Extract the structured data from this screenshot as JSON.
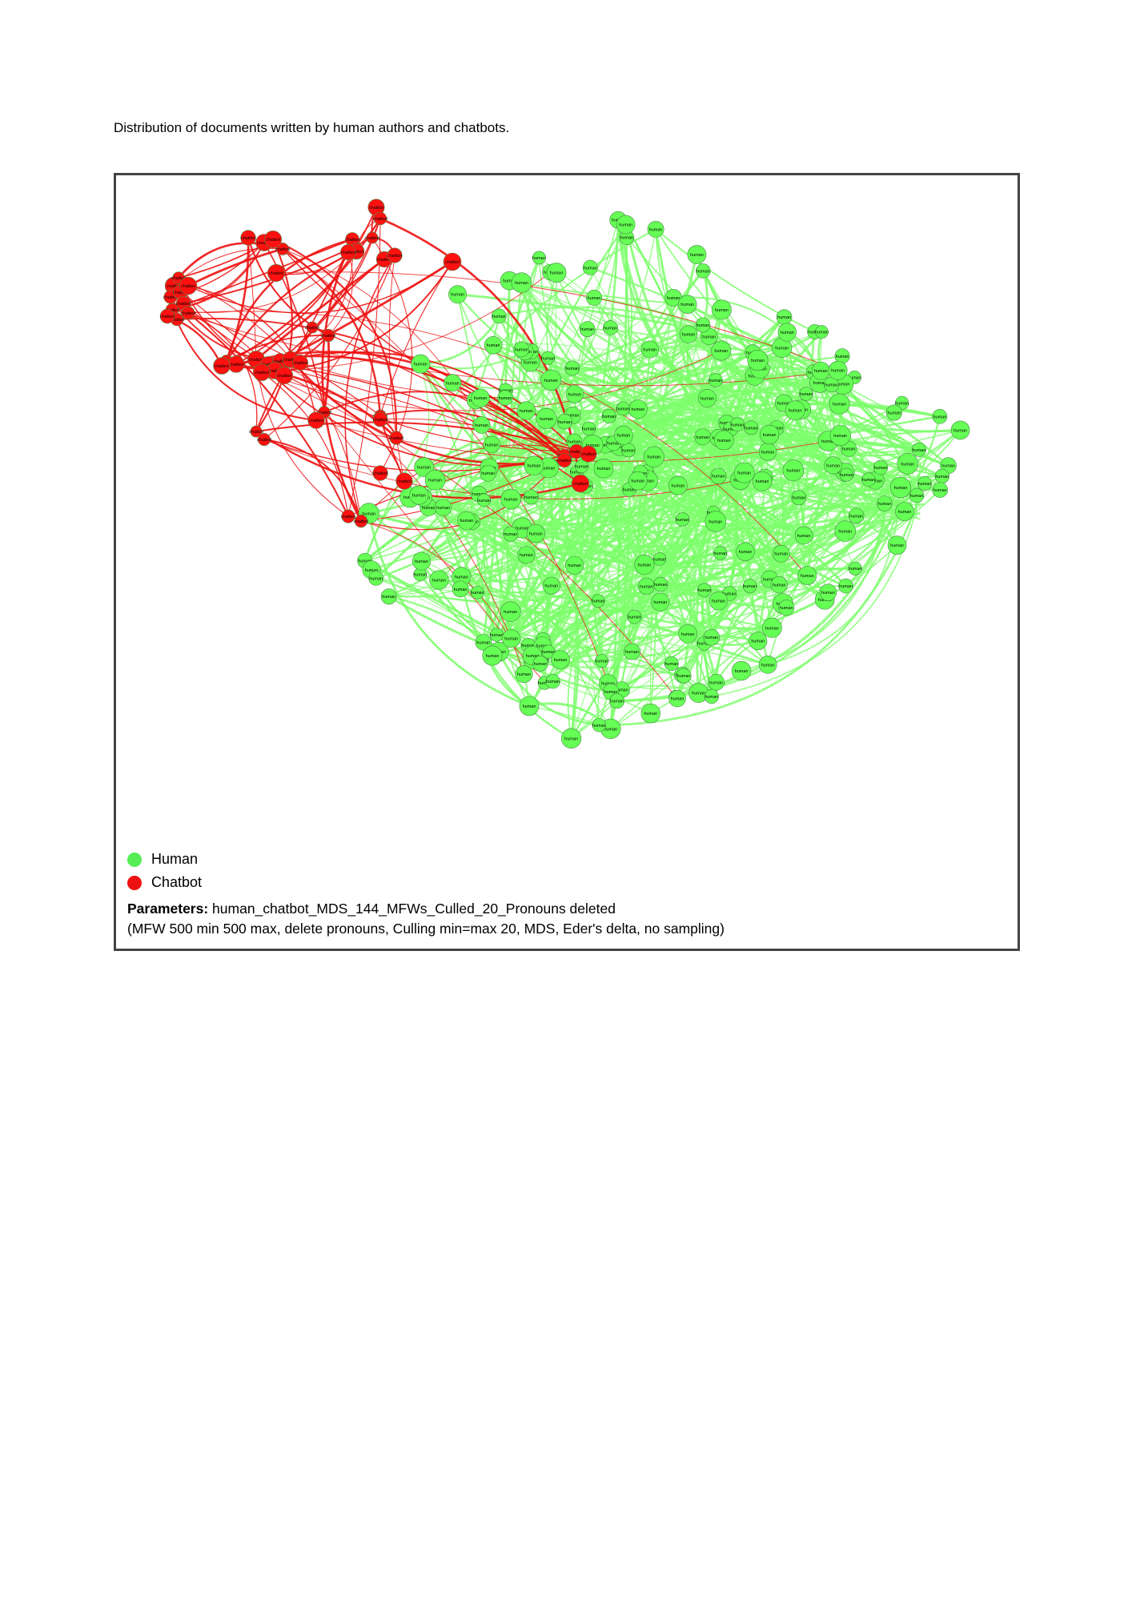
{
  "caption": "Distribution of documents written by human authors and chatbots.",
  "colors": {
    "human": "#66ff55",
    "chatbot": "#ff1111",
    "human_edge": "#7dff6b",
    "chatbot_edge": "#ee1111"
  },
  "node_labels": {
    "human": "human",
    "chatbot": "chatbot"
  },
  "legend": [
    {
      "label": "Human",
      "color": "#55ee55"
    },
    {
      "label": "Chatbot",
      "color": "#ee1111"
    }
  ],
  "parameters": {
    "heading": "Parameters:",
    "name": "human_chatbot_MDS_144_MFWs_Culled_20_Pronouns deleted",
    "details": "(MFW 500 min 500 max, delete pronouns, Culling min=max 20, MDS, Eder's delta, no sampling)"
  }
}
